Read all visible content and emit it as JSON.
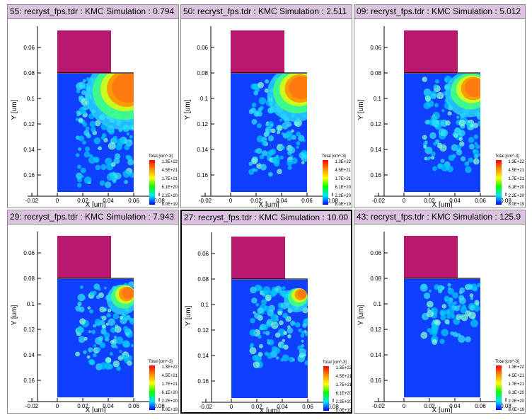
{
  "panels": [
    {
      "title": "55: recryst_fps.tdr : KMC Simulation : 0.794",
      "hot": 1.0,
      "spread": 1.0,
      "active": false
    },
    {
      "title": "50: recryst_fps.tdr : KMC Simulation : 2.511",
      "hot": 0.75,
      "spread": 0.9,
      "active": false
    },
    {
      "title": "09: recryst_fps.tdr : KMC Simulation : 5.012",
      "hot": 0.6,
      "spread": 0.85,
      "active": false
    },
    {
      "title": "29: recryst_fps.tdr : KMC Simulation : 7.943",
      "hot": 0.35,
      "spread": 0.8,
      "active": false
    },
    {
      "title": "27: recryst_fps.tdr : KMC Simulation : 10.00",
      "hot": 0.25,
      "spread": 0.75,
      "active": true
    },
    {
      "title": "43: recryst_fps.tdr : KMC Simulation : 125.9",
      "hot": 0.0,
      "spread": 0.55,
      "active": false
    }
  ],
  "axes": {
    "xlabel": "X [um]",
    "ylabel": "Y [um]",
    "xticks": [
      "-0.02",
      "0",
      "0.02",
      "0.04",
      "0.06",
      "0.08"
    ],
    "yticks": [
      "0.06",
      "0.08",
      "0.1",
      "0.12",
      "0.14",
      "0.16"
    ]
  },
  "legend": {
    "title": "Total [cm^-3]",
    "labels": [
      "1.3E+22",
      "4.5E+21",
      "1.7E+21",
      "6.1E+20",
      "2.2E+20",
      "8.0E+19"
    ],
    "colors": [
      "#ff0000",
      "#ff8c00",
      "#ffff00",
      "#00ff00",
      "#00e5ff",
      "#0000ff"
    ]
  },
  "colors": {
    "mask": "#b8196e",
    "substrate": "#1040ff",
    "title_bg": "#dcc4e0"
  }
}
